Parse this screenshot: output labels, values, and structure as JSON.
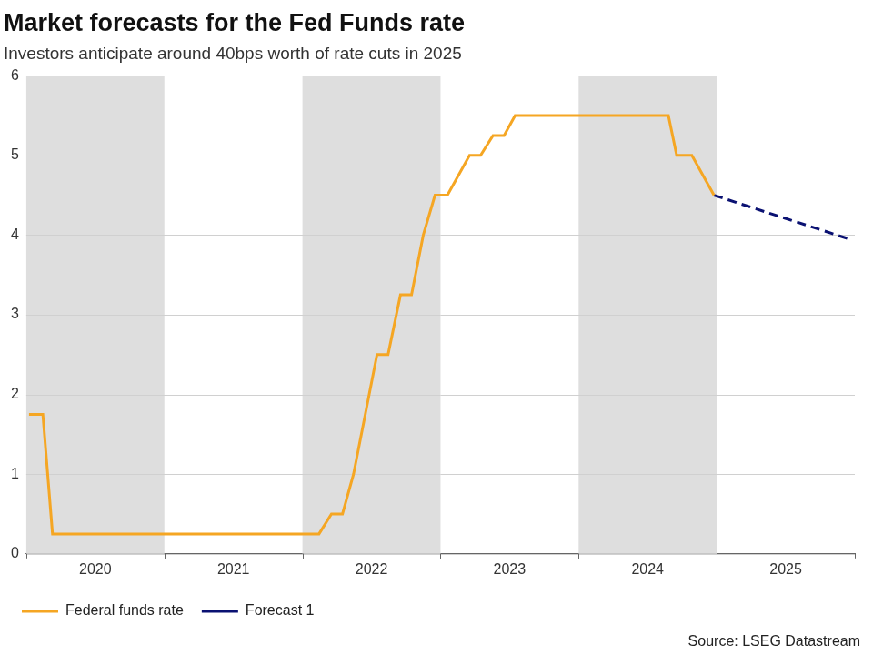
{
  "chart_data": {
    "type": "line",
    "title": "Market forecasts for the Fed Funds rate",
    "subtitle": "Investors anticipate around 40bps worth of rate cuts in 2025",
    "source": "Source: LSEG Datastream",
    "xlim": [
      2020,
      2026
    ],
    "xticks": [
      {
        "value": 2020.5,
        "label": "2020"
      },
      {
        "value": 2021.5,
        "label": "2021"
      },
      {
        "value": 2022.5,
        "label": "2022"
      },
      {
        "value": 2023.5,
        "label": "2023"
      },
      {
        "value": 2024.5,
        "label": "2024"
      },
      {
        "value": 2025.5,
        "label": "2025"
      }
    ],
    "ylim": [
      0,
      6
    ],
    "yticks": [
      0,
      1,
      2,
      3,
      4,
      5,
      6
    ],
    "grid": true,
    "legend": "bottom-left",
    "series": [
      {
        "name": "Federal funds rate",
        "color": "#f5a623",
        "line_style": "solid",
        "x": [
          2020.02,
          2020.12,
          2020.19,
          2022.12,
          2022.21,
          2022.29,
          2022.37,
          2022.54,
          2022.62,
          2022.71,
          2022.79,
          2022.875,
          2022.96,
          2023.05,
          2023.21,
          2023.29,
          2023.38,
          2023.46,
          2023.54,
          2024.65,
          2024.71,
          2024.82,
          2024.98
        ],
        "values": [
          1.75,
          1.75,
          0.25,
          0.25,
          0.5,
          0.5,
          1.0,
          2.5,
          2.5,
          3.25,
          3.25,
          4.0,
          4.5,
          4.5,
          5.0,
          5.0,
          5.25,
          5.25,
          5.5,
          5.5,
          5.0,
          5.0,
          4.5
        ]
      },
      {
        "name": "Forecast 1",
        "color": "#0a1172",
        "line_style": "dashed",
        "x": [
          2024.98,
          2025.96
        ],
        "values": [
          4.5,
          3.95
        ]
      }
    ]
  }
}
